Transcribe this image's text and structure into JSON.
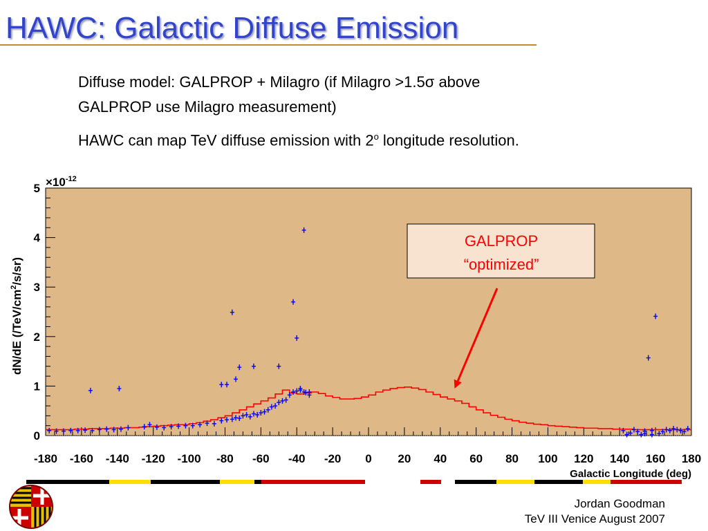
{
  "slide": {
    "title": "HAWC: Galactic Diffuse Emission",
    "line1": "Diffuse model: GALPROP + Milagro (if Milagro >1.5",
    "sigma": "σ",
    "line1_end": " above",
    "line2": "GALPROP use Milagro measurement)",
    "line3_a": "HAWC can map TeV diffuse emission with 2",
    "line3_sup": "o",
    "line3_b": " longitude resolution.",
    "footer_author": "Jordan Goodman",
    "footer_event": "TeV III Venice August 2007"
  },
  "colors": {
    "title": "#3344cc",
    "plot_bg": "#deb887",
    "model_line": "#ff0000",
    "data_points": "#0000ff",
    "annotation_box": "#f7e3cf",
    "arrow": "#ff0000"
  },
  "chart_data": {
    "type": "line",
    "xlabel": "Galactic Longitude (deg)",
    "ylabel": "dN/dE (/TeV/cm²/s/sr)",
    "ylabel_parts": {
      "a": "dN/dE (/TeV/cm",
      "sup": "2",
      "b": "/s/sr)"
    },
    "y_exponent_label": "×10",
    "y_exponent_sup": "-12",
    "xlim": [
      -180,
      180
    ],
    "ylim": [
      0,
      5
    ],
    "x_ticks": [
      -180,
      -160,
      -140,
      -120,
      -100,
      -80,
      -60,
      -40,
      -20,
      0,
      20,
      40,
      60,
      80,
      100,
      120,
      140,
      160,
      180
    ],
    "y_ticks": [
      0,
      1,
      2,
      3,
      4,
      5
    ],
    "grid": false,
    "annotation": {
      "line1": "GALPROP",
      "line2": "“optimized”",
      "arrow_to": [
        48,
        0.95
      ]
    },
    "series": [
      {
        "name": "GALPROP",
        "kind": "step",
        "x": [
          -180,
          -176,
          -172,
          -168,
          -164,
          -160,
          -156,
          -152,
          -148,
          -144,
          -140,
          -136,
          -132,
          -128,
          -124,
          -120,
          -116,
          -112,
          -108,
          -104,
          -100,
          -96,
          -92,
          -88,
          -84,
          -80,
          -76,
          -72,
          -68,
          -64,
          -60,
          -56,
          -52,
          -48,
          -44,
          -40,
          -36,
          -32,
          -28,
          -24,
          -20,
          -16,
          -12,
          -8,
          -4,
          0,
          4,
          8,
          12,
          16,
          20,
          24,
          28,
          32,
          36,
          40,
          44,
          48,
          52,
          56,
          60,
          64,
          68,
          72,
          76,
          80,
          84,
          88,
          92,
          96,
          100,
          104,
          108,
          112,
          116,
          120,
          124,
          128,
          132,
          136,
          140,
          144,
          148,
          152,
          156,
          160,
          164,
          168,
          172,
          176
        ],
        "y": [
          0.12,
          0.12,
          0.12,
          0.12,
          0.13,
          0.13,
          0.14,
          0.14,
          0.14,
          0.15,
          0.15,
          0.16,
          0.16,
          0.17,
          0.18,
          0.19,
          0.2,
          0.21,
          0.22,
          0.22,
          0.24,
          0.26,
          0.29,
          0.32,
          0.36,
          0.4,
          0.46,
          0.52,
          0.58,
          0.64,
          0.7,
          0.76,
          0.84,
          0.92,
          0.86,
          0.84,
          0.86,
          0.88,
          0.85,
          0.8,
          0.77,
          0.74,
          0.74,
          0.75,
          0.78,
          0.82,
          0.88,
          0.92,
          0.95,
          0.97,
          0.98,
          0.96,
          0.93,
          0.88,
          0.83,
          0.78,
          0.74,
          0.7,
          0.65,
          0.58,
          0.52,
          0.46,
          0.41,
          0.37,
          0.33,
          0.3,
          0.27,
          0.25,
          0.23,
          0.22,
          0.2,
          0.19,
          0.18,
          0.17,
          0.16,
          0.15,
          0.15,
          0.14,
          0.14,
          0.13,
          0.13,
          0.13,
          0.12,
          0.12,
          0.12,
          0.12,
          0.12,
          0.12,
          0.12,
          0.12
        ]
      },
      {
        "name": "Milagro",
        "kind": "points",
        "x": [
          -178,
          -174,
          -170,
          -166,
          -162,
          -158,
          -154,
          -150,
          -146,
          -142,
          -138,
          -134,
          -125,
          -122,
          -118,
          -114,
          -110,
          -106,
          -102,
          -98,
          -94,
          -90,
          -86,
          -82,
          -79,
          -76,
          -74,
          -72,
          -70,
          -68,
          -66,
          -64,
          -62,
          -60,
          -58,
          -56,
          -54,
          -52,
          -50,
          -48,
          -46,
          -44,
          -42,
          -40,
          -38,
          -36,
          -35,
          -33,
          -155,
          -139,
          -82,
          -79,
          -76,
          -74,
          -72,
          -64,
          -50,
          -42,
          -40,
          -38,
          -36,
          -33,
          142,
          144,
          146,
          148,
          150,
          152,
          154,
          156,
          158,
          160,
          162,
          164,
          166,
          168,
          170,
          172,
          174,
          176,
          178,
          154,
          158
        ],
        "y": [
          0.1,
          0.09,
          0.09,
          0.1,
          0.1,
          0.11,
          0.1,
          0.12,
          0.13,
          0.12,
          0.13,
          0.16,
          0.18,
          0.22,
          0.17,
          0.16,
          0.18,
          0.19,
          0.2,
          0.2,
          0.22,
          0.25,
          0.24,
          0.3,
          0.32,
          0.33,
          0.36,
          0.35,
          0.4,
          0.42,
          0.38,
          0.44,
          0.42,
          0.46,
          0.48,
          0.52,
          0.58,
          0.6,
          0.67,
          0.7,
          0.72,
          0.82,
          0.88,
          0.9,
          0.92,
          0.88,
          0.87,
          0.82,
          0.91,
          0.95,
          1.03,
          1.03,
          2.49,
          1.14,
          1.38,
          1.4,
          1.4,
          2.7,
          1.97,
          0.95,
          4.15,
          0.88,
          0.1,
          0.02,
          0.05,
          0.12,
          0.08,
          0.02,
          0.04,
          1.57,
          0.02,
          2.41,
          0.04,
          0.08,
          0.12,
          0.1,
          0.14,
          0.12,
          0.1,
          0.08,
          0.14,
          0.09,
          0.1
        ]
      }
    ]
  },
  "stripe_colors": [
    "#000000",
    "#ffdd00",
    "#cc0000",
    "#ffffff"
  ],
  "logo": {
    "name": "university-crest-icon"
  }
}
